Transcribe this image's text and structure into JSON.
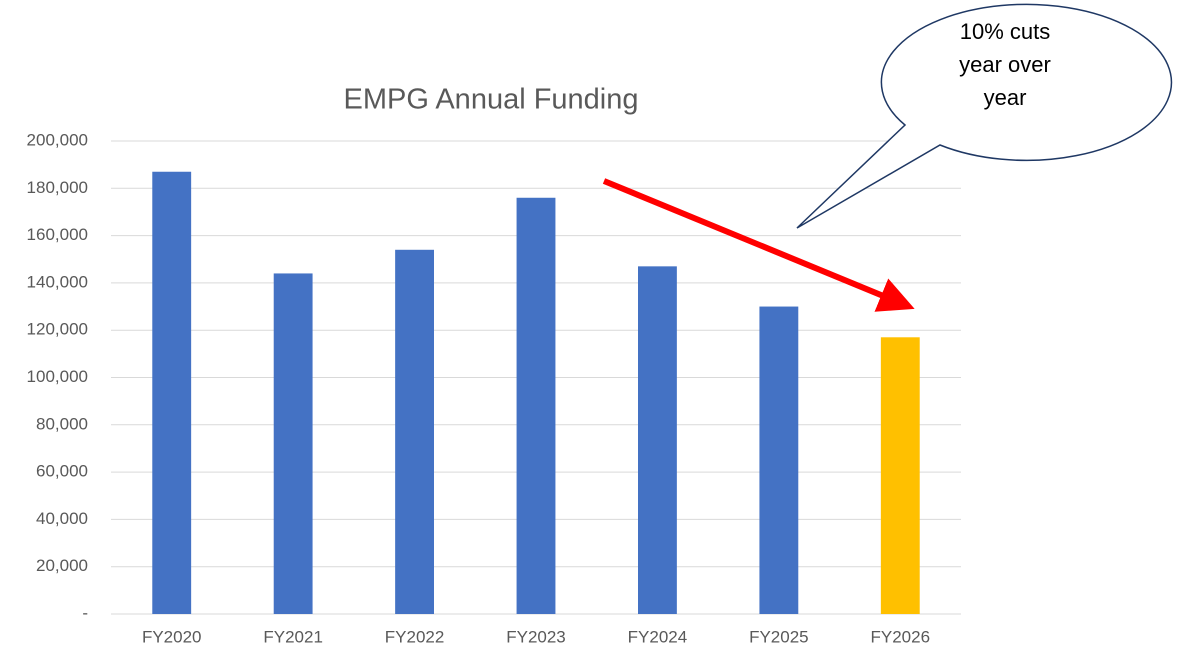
{
  "chart_data": {
    "type": "bar",
    "title": "EMPG Annual Funding",
    "categories": [
      "FY2020",
      "FY2021",
      "FY2022",
      "FY2023",
      "FY2024",
      "FY2025",
      "FY2026"
    ],
    "values": [
      187000,
      144000,
      154000,
      176000,
      147000,
      130000,
      117000
    ],
    "colors": [
      "#4472c4",
      "#4472c4",
      "#4472c4",
      "#4472c4",
      "#4472c4",
      "#4472c4",
      "#ffc000"
    ],
    "ylim": [
      0,
      200000
    ],
    "yticks": [
      {
        "value": 0,
        "label": "-"
      },
      {
        "value": 20000,
        "label": "20,000"
      },
      {
        "value": 40000,
        "label": "40,000"
      },
      {
        "value": 60000,
        "label": "60,000"
      },
      {
        "value": 80000,
        "label": "80,000"
      },
      {
        "value": 100000,
        "label": "100,000"
      },
      {
        "value": 120000,
        "label": "120,000"
      },
      {
        "value": 140000,
        "label": "140,000"
      },
      {
        "value": 160000,
        "label": "160,000"
      },
      {
        "value": 180000,
        "label": "180,000"
      },
      {
        "value": 200000,
        "label": "200,000"
      }
    ],
    "grid": true,
    "annotation": [
      "10% cuts",
      "year over",
      "year"
    ]
  }
}
